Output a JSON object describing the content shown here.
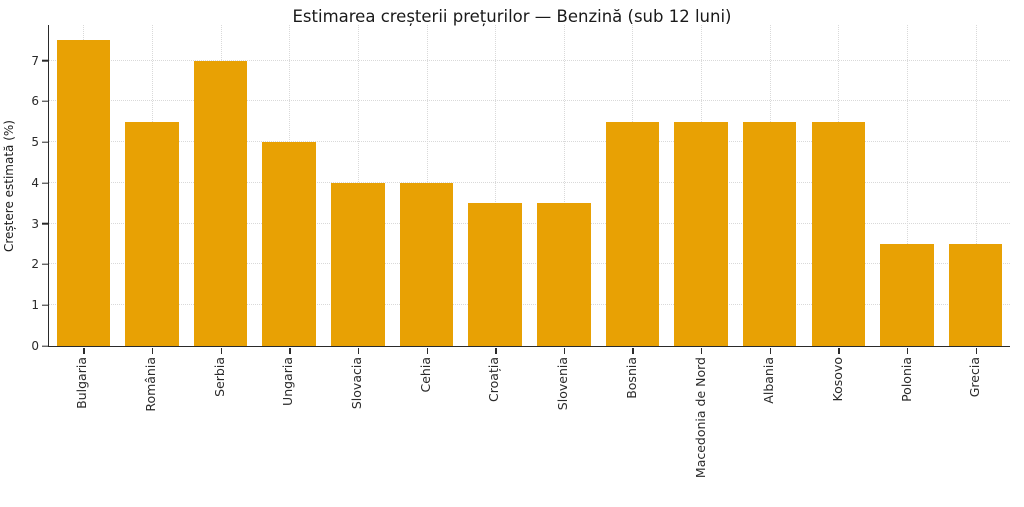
{
  "chart_data": {
    "type": "bar",
    "title": "Estimarea creșterii prețurilor — Benzină (sub 12 luni)",
    "ylabel": "Creștere estimată (%)",
    "xlabel": "",
    "categories": [
      "Bulgaria",
      "România",
      "Serbia",
      "Ungaria",
      "Slovacia",
      "Cehia",
      "Croația",
      "Slovenia",
      "Bosnia",
      "Macedonia de Nord",
      "Albania",
      "Kosovo",
      "Polonia",
      "Grecia"
    ],
    "values": [
      7.5,
      5.5,
      7.0,
      5.0,
      4.0,
      4.0,
      3.5,
      3.5,
      5.5,
      5.5,
      5.5,
      5.5,
      2.5,
      2.5
    ],
    "yticks": [
      0,
      1,
      2,
      3,
      4,
      5,
      6,
      7
    ],
    "ylim": [
      0,
      7.875
    ],
    "bar_color": "#E8A104",
    "grid": "dotted-both-axes",
    "legend": "none"
  }
}
